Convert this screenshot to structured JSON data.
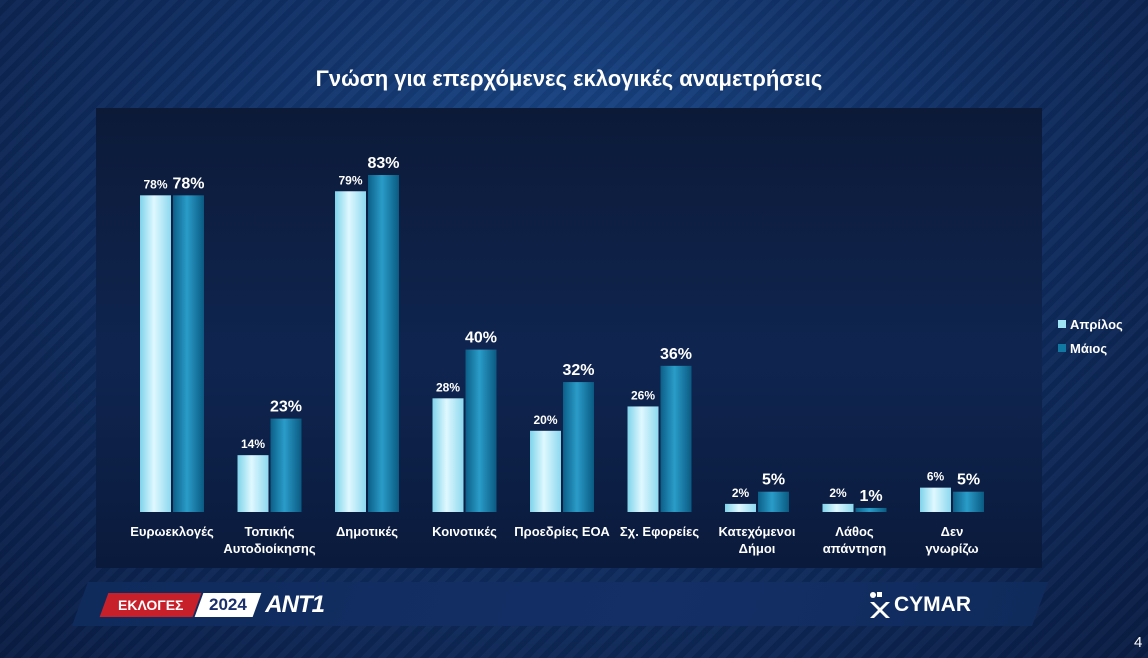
{
  "title": "Γνώση για επερχόμενες εκλογικές αναμετρήσεις",
  "legend": [
    {
      "name": "Απρίλος",
      "color": "#9fe4f5"
    },
    {
      "name": "Μάιος",
      "color": "#1177a3"
    }
  ],
  "chart_data": {
    "type": "bar",
    "categories": [
      [
        "Ευρωεκλογές"
      ],
      [
        "Τοπικής",
        "Αυτοδιοίκησης"
      ],
      [
        "Δημοτικές"
      ],
      [
        "Κοινοτικές"
      ],
      [
        "Προεδρίες ΕΟΑ"
      ],
      [
        "Σχ. Εφορείες"
      ],
      [
        "Κατεχόμενοι",
        "Δήμοι"
      ],
      [
        "Λάθος",
        "απάντηση"
      ],
      [
        "Δεν",
        "γνωρίζω"
      ]
    ],
    "series": [
      {
        "name": "Απρίλος",
        "values": [
          78,
          14,
          79,
          28,
          20,
          26,
          2,
          2,
          6
        ],
        "labels": [
          "78%",
          "14%",
          "79%",
          "28%",
          "20%",
          "26%",
          "2%",
          "2%",
          "6%"
        ]
      },
      {
        "name": "Μάιος",
        "values": [
          78,
          23,
          83,
          40,
          32,
          36,
          5,
          1,
          5
        ],
        "labels": [
          "78%",
          "23%",
          "83%",
          "40%",
          "32%",
          "36%",
          "5%",
          "1%",
          "5%"
        ]
      }
    ],
    "ylim": [
      0,
      100
    ],
    "legend_position": "right",
    "grid": false
  },
  "footer": {
    "left_logo": {
      "word": "ΕΚΛΟΓΕΣ",
      "year": "2024",
      "brand": "ANT1"
    },
    "right_logo": "CYMAR",
    "page_number": "4"
  }
}
